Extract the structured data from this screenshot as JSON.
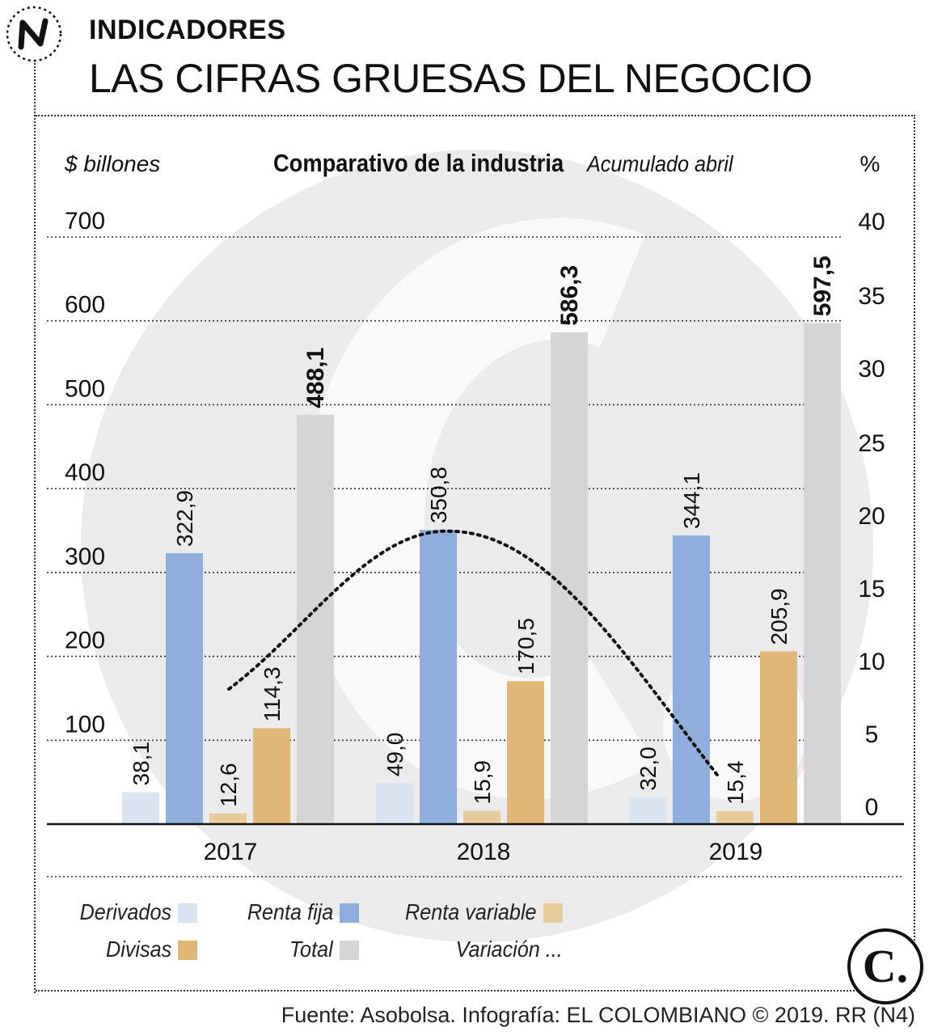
{
  "header": {
    "section_label": "INDICADORES",
    "headline": "LAS CIFRAS GRUESAS DEL NEGOCIO"
  },
  "chart_data": {
    "type": "bar",
    "title": "Comparativo de la industria",
    "subtitle": "Acumulado abril",
    "ylabel": "$ billones",
    "y2label": "%",
    "ylim": [
      0,
      700
    ],
    "y2lim": [
      0,
      40
    ],
    "yticks": [
      100,
      200,
      300,
      400,
      500,
      600,
      700
    ],
    "y2ticks": [
      0,
      5,
      10,
      15,
      20,
      25,
      30,
      35,
      40
    ],
    "categories": [
      "2017",
      "2018",
      "2019"
    ],
    "series": [
      {
        "name": "Derivados",
        "color": "#d9e3f1",
        "values": [
          38.1,
          49.0,
          32.0
        ],
        "labels": [
          "38,1",
          "49,0",
          "32,0"
        ]
      },
      {
        "name": "Renta fija",
        "color": "#8faedb",
        "values": [
          322.9,
          350.8,
          344.1
        ],
        "labels": [
          "322,9",
          "350,8",
          "344,1"
        ]
      },
      {
        "name": "Renta variable",
        "color": "#e6cc9a",
        "values": [
          12.6,
          15.9,
          15.4
        ],
        "labels": [
          "12,6",
          "15,9",
          "15,4"
        ]
      },
      {
        "name": "Divisas",
        "color": "#dfb777",
        "values": [
          114.3,
          170.5,
          205.9
        ],
        "labels": [
          "114,3",
          "170,5",
          "205,9"
        ]
      },
      {
        "name": "Total",
        "color": "#d5d5d8",
        "values": [
          488.1,
          586.3,
          597.5
        ],
        "labels": [
          "488,1",
          "586,3",
          "597,5"
        ]
      }
    ],
    "variation_line": {
      "name": "Variación",
      "style": "dotted",
      "axis": "right"
    },
    "grid": true,
    "legend_position": "bottom"
  },
  "legend": {
    "items": [
      {
        "label": "Derivados",
        "color": "#d9e3f1"
      },
      {
        "label": "Renta fija",
        "color": "#8faedb"
      },
      {
        "label": "Renta variable",
        "color": "#e6cc9a"
      },
      {
        "label": "Divisas",
        "color": "#dfb777"
      },
      {
        "label": "Total",
        "color": "#d5d5d8"
      },
      {
        "label": "Variación ...",
        "color": "#111111"
      }
    ]
  },
  "brand": {
    "mark": "C."
  },
  "footer": {
    "source": "Fuente: Asobolsa. Infografía: EL COLOMBIANO © 2019. RR (N4)"
  }
}
